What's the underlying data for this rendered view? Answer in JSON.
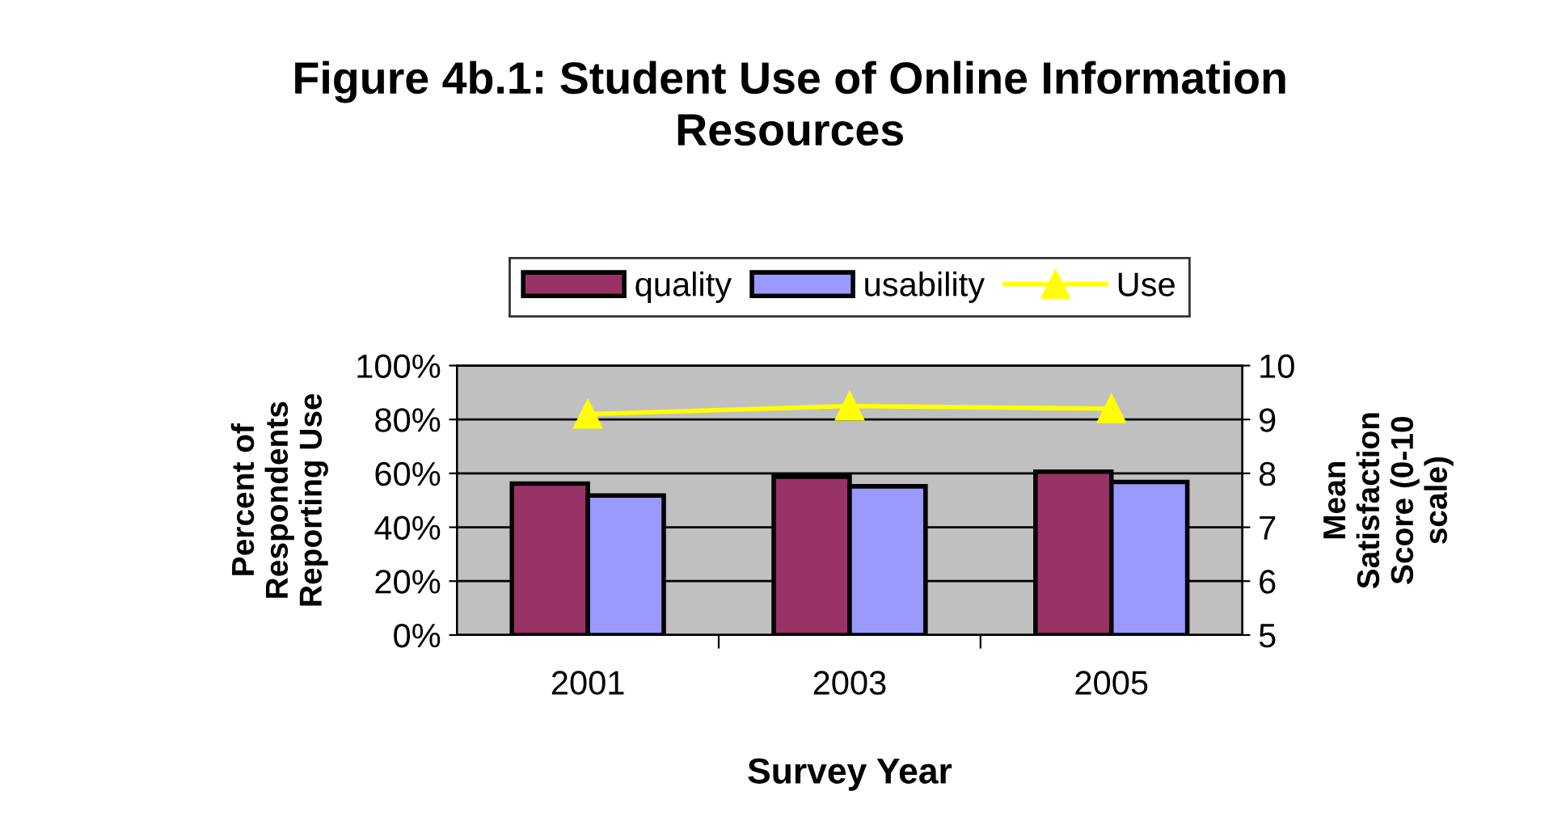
{
  "chart_data": {
    "type": "bar",
    "title": "Figure 4b.1: Student Use of Online Information\nResources",
    "categories": [
      "2001",
      "2003",
      "2005"
    ],
    "xlabel": "Survey Year",
    "ylabel": "Percent of\nRespondents\nReporting Use",
    "y2label": "Mean\nSatisfaction\nScore (0-10\nscale)",
    "series": [
      {
        "name": "quality",
        "axis": "y2",
        "color": "#993366",
        "values": [
          7.81,
          7.94,
          8.03
        ]
      },
      {
        "name": "usability",
        "axis": "y2",
        "color": "#9999ff",
        "values": [
          7.59,
          7.76,
          7.84
        ]
      },
      {
        "name": "Use",
        "type": "line",
        "axis": "y",
        "color": "#ffff00",
        "marker": "triangle",
        "values": [
          82,
          85,
          84
        ]
      }
    ],
    "ylim": [
      0,
      100
    ],
    "yticks": [
      {
        "value": 0,
        "label": "0%"
      },
      {
        "value": 20,
        "label": "20%"
      },
      {
        "value": 40,
        "label": "40%"
      },
      {
        "value": 60,
        "label": "60%"
      },
      {
        "value": 80,
        "label": "80%"
      },
      {
        "value": 100,
        "label": "100%"
      }
    ],
    "y2lim": [
      5,
      10
    ],
    "y2ticks": [
      5,
      6,
      7,
      8,
      9,
      10
    ],
    "grid": "y",
    "legend": "top"
  }
}
